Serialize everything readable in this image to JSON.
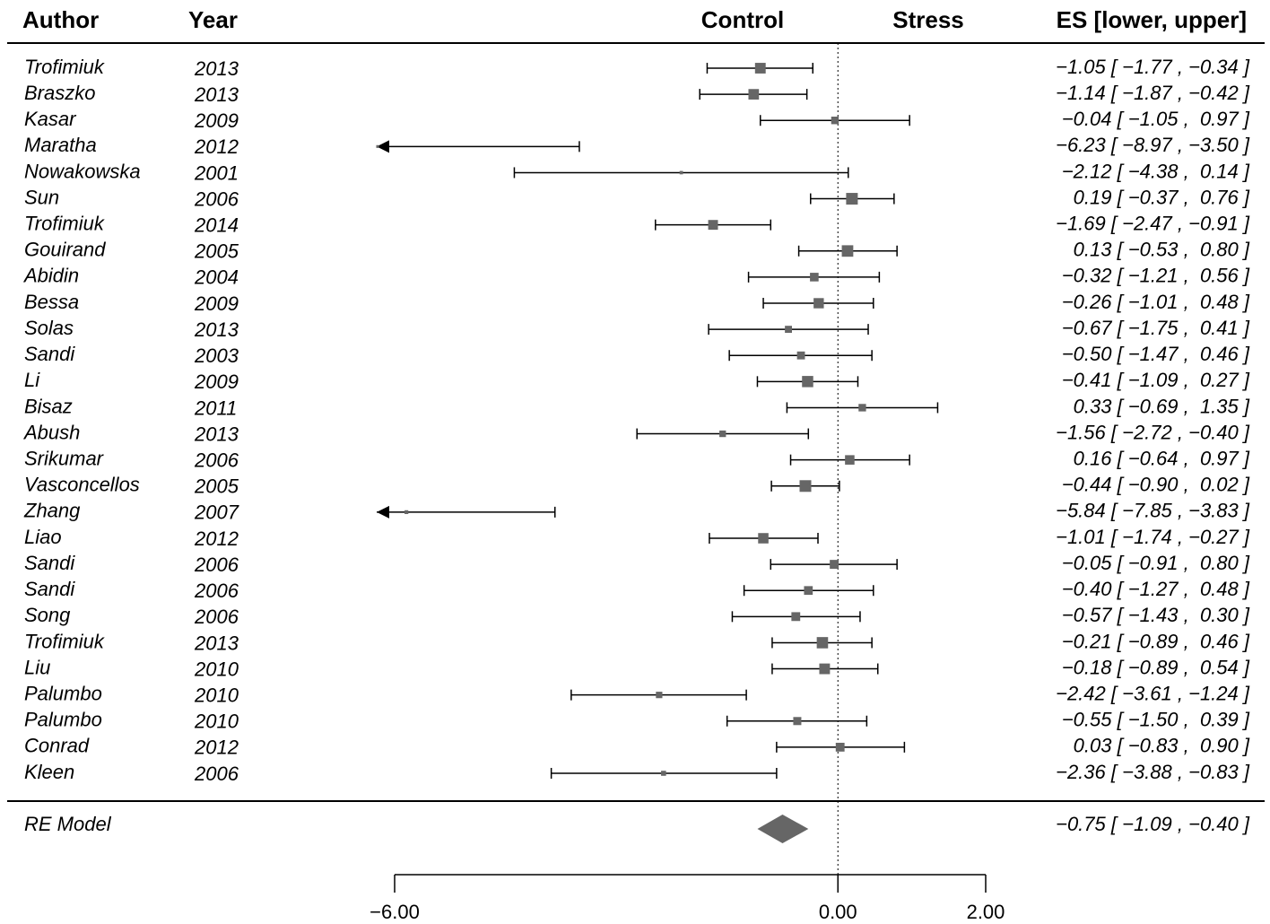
{
  "chart_data": {
    "type": "forest",
    "headers": {
      "author": "Author",
      "year": "Year",
      "left": "Control",
      "right": "Stress",
      "es": "ES [lower, upper]"
    },
    "studies": [
      {
        "author": "Trofimiuk",
        "year": 2013,
        "es": -1.05,
        "lower": -1.77,
        "upper": -0.34,
        "label": "−1.05 [ −1.77 , −0.34 ]"
      },
      {
        "author": "Braszko",
        "year": 2013,
        "es": -1.14,
        "lower": -1.87,
        "upper": -0.42,
        "label": "−1.14 [ −1.87 , −0.42 ]"
      },
      {
        "author": "Kasar",
        "year": 2009,
        "es": -0.04,
        "lower": -1.05,
        "upper": 0.97,
        "label": "−0.04 [ −1.05 ,  0.97 ]"
      },
      {
        "author": "Maratha",
        "year": 2012,
        "es": -6.23,
        "lower": -8.97,
        "upper": -3.5,
        "label": "−6.23 [ −8.97 , −3.50 ]"
      },
      {
        "author": "Nowakowska",
        "year": 2001,
        "es": -2.12,
        "lower": -4.38,
        "upper": 0.14,
        "label": "−2.12 [ −4.38 ,  0.14 ]"
      },
      {
        "author": "Sun",
        "year": 2006,
        "es": 0.19,
        "lower": -0.37,
        "upper": 0.76,
        "label": "0.19 [ −0.37 ,  0.76 ]"
      },
      {
        "author": "Trofimiuk",
        "year": 2014,
        "es": -1.69,
        "lower": -2.47,
        "upper": -0.91,
        "label": "−1.69 [ −2.47 , −0.91 ]"
      },
      {
        "author": "Gouirand",
        "year": 2005,
        "es": 0.13,
        "lower": -0.53,
        "upper": 0.8,
        "label": "0.13 [ −0.53 ,  0.80 ]"
      },
      {
        "author": "Abidin",
        "year": 2004,
        "es": -0.32,
        "lower": -1.21,
        "upper": 0.56,
        "label": "−0.32 [ −1.21 ,  0.56 ]"
      },
      {
        "author": "Bessa",
        "year": 2009,
        "es": -0.26,
        "lower": -1.01,
        "upper": 0.48,
        "label": "−0.26 [ −1.01 ,  0.48 ]"
      },
      {
        "author": "Solas",
        "year": 2013,
        "es": -0.67,
        "lower": -1.75,
        "upper": 0.41,
        "label": "−0.67 [ −1.75 ,  0.41 ]"
      },
      {
        "author": "Sandi",
        "year": 2003,
        "es": -0.5,
        "lower": -1.47,
        "upper": 0.46,
        "label": "−0.50 [ −1.47 ,  0.46 ]"
      },
      {
        "author": "Li",
        "year": 2009,
        "es": -0.41,
        "lower": -1.09,
        "upper": 0.27,
        "label": "−0.41 [ −1.09 ,  0.27 ]"
      },
      {
        "author": "Bisaz",
        "year": 2011,
        "es": 0.33,
        "lower": -0.69,
        "upper": 1.35,
        "label": "0.33 [ −0.69 ,  1.35 ]"
      },
      {
        "author": "Abush",
        "year": 2013,
        "es": -1.56,
        "lower": -2.72,
        "upper": -0.4,
        "label": "−1.56 [ −2.72 , −0.40 ]"
      },
      {
        "author": "Srikumar",
        "year": 2006,
        "es": 0.16,
        "lower": -0.64,
        "upper": 0.97,
        "label": "0.16 [ −0.64 ,  0.97 ]"
      },
      {
        "author": "Vasconcellos",
        "year": 2005,
        "es": -0.44,
        "lower": -0.9,
        "upper": 0.02,
        "label": "−0.44 [ −0.90 ,  0.02 ]"
      },
      {
        "author": "Zhang",
        "year": 2007,
        "es": -5.84,
        "lower": -7.85,
        "upper": -3.83,
        "label": "−5.84 [ −7.85 , −3.83 ]"
      },
      {
        "author": "Liao",
        "year": 2012,
        "es": -1.01,
        "lower": -1.74,
        "upper": -0.27,
        "label": "−1.01 [ −1.74 , −0.27 ]"
      },
      {
        "author": "Sandi",
        "year": 2006,
        "es": -0.05,
        "lower": -0.91,
        "upper": 0.8,
        "label": "−0.05 [ −0.91 ,  0.80 ]"
      },
      {
        "author": "Sandi",
        "year": 2006,
        "es": -0.4,
        "lower": -1.27,
        "upper": 0.48,
        "label": "−0.40 [ −1.27 ,  0.48 ]"
      },
      {
        "author": "Song",
        "year": 2006,
        "es": -0.57,
        "lower": -1.43,
        "upper": 0.3,
        "label": "−0.57 [ −1.43 ,  0.30 ]"
      },
      {
        "author": "Trofimiuk",
        "year": 2013,
        "es": -0.21,
        "lower": -0.89,
        "upper": 0.46,
        "label": "−0.21 [ −0.89 ,  0.46 ]"
      },
      {
        "author": "Liu",
        "year": 2010,
        "es": -0.18,
        "lower": -0.89,
        "upper": 0.54,
        "label": "−0.18 [ −0.89 ,  0.54 ]"
      },
      {
        "author": "Palumbo",
        "year": 2010,
        "es": -2.42,
        "lower": -3.61,
        "upper": -1.24,
        "label": "−2.42 [ −3.61 , −1.24 ]"
      },
      {
        "author": "Palumbo",
        "year": 2010,
        "es": -0.55,
        "lower": -1.5,
        "upper": 0.39,
        "label": "−0.55 [ −1.50 ,  0.39 ]"
      },
      {
        "author": "Conrad",
        "year": 2012,
        "es": 0.03,
        "lower": -0.83,
        "upper": 0.9,
        "label": "0.03 [ −0.83 ,  0.90 ]"
      },
      {
        "author": "Kleen",
        "year": 2006,
        "es": -2.36,
        "lower": -3.88,
        "upper": -0.83,
        "label": "−2.36 [ −3.88 , −0.83 ]"
      }
    ],
    "summary": {
      "author": "RE Model",
      "es": -0.75,
      "lower": -1.09,
      "upper": -0.4,
      "label": "−0.75 [ −1.09 , −0.40 ]"
    },
    "xlim": [
      -6,
      2
    ],
    "xticks": [
      {
        "value": -6,
        "label": "−6.00"
      },
      {
        "value": 0,
        "label": "0.00"
      },
      {
        "value": 2,
        "label": "2.00"
      }
    ],
    "color": "#666666"
  }
}
